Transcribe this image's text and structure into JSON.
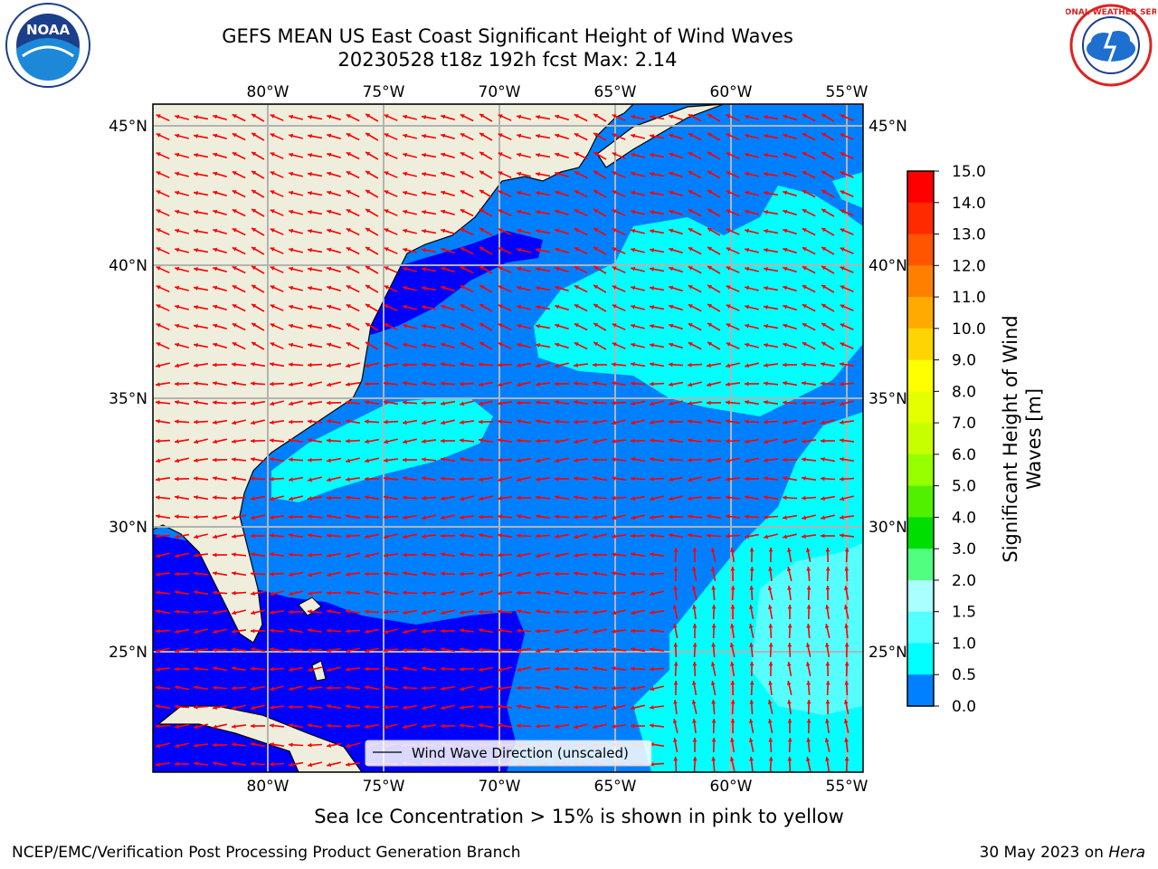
{
  "title_line1": "GEFS MEAN US East Coast Significant Height of Wind Waves",
  "title_line2": "20230528 t18z 192h fcst   Max: 2.14",
  "lon_labels": [
    "80°W",
    "75°W",
    "70°W",
    "65°W",
    "60°W",
    "55°W"
  ],
  "lat_labels": [
    "45°N",
    "40°N",
    "35°N",
    "30°N",
    "25°N"
  ],
  "legend_label": "Wind Wave Direction (unscaled)",
  "colorbar": {
    "label_line1": "Significant Height of Wind",
    "label_line2": "Waves [m]",
    "ticks": [
      "15.0",
      "14.0",
      "13.0",
      "12.0",
      "11.0",
      "10.0",
      "9.0",
      "8.0",
      "7.0",
      "6.0",
      "5.0",
      "4.0",
      "3.0",
      "2.0",
      "1.5",
      "1.0",
      "0.5",
      "0.0"
    ],
    "colors": [
      "#ff0000",
      "#ff2a00",
      "#ff5500",
      "#ff8000",
      "#ffaa00",
      "#ffd400",
      "#ffff00",
      "#e4ff00",
      "#c8ff00",
      "#96ff00",
      "#50f000",
      "#00dd00",
      "#50ff80",
      "#aaffff",
      "#55ffff",
      "#00ffff",
      "#0080ff",
      "#0000ff"
    ]
  },
  "map": {
    "colors": {
      "land": "#efeedc",
      "band0": "#0000ff",
      "band1": "#0080ff",
      "band2": "#00ffff",
      "band3": "#55ffff",
      "arrow": "#ff0000",
      "grid": "#b3b3b3"
    }
  },
  "note": "Sea Ice Concentration > 15% is shown in pink to yellow",
  "footer_left": "NCEP/EMC/Verification Post Processing Product Generation Branch",
  "footer_date": "30 May 2023 on ",
  "footer_host": "Hera",
  "logos": {
    "noaa": "NOAA",
    "nws": "NATIONAL WEATHER SERVICE"
  }
}
